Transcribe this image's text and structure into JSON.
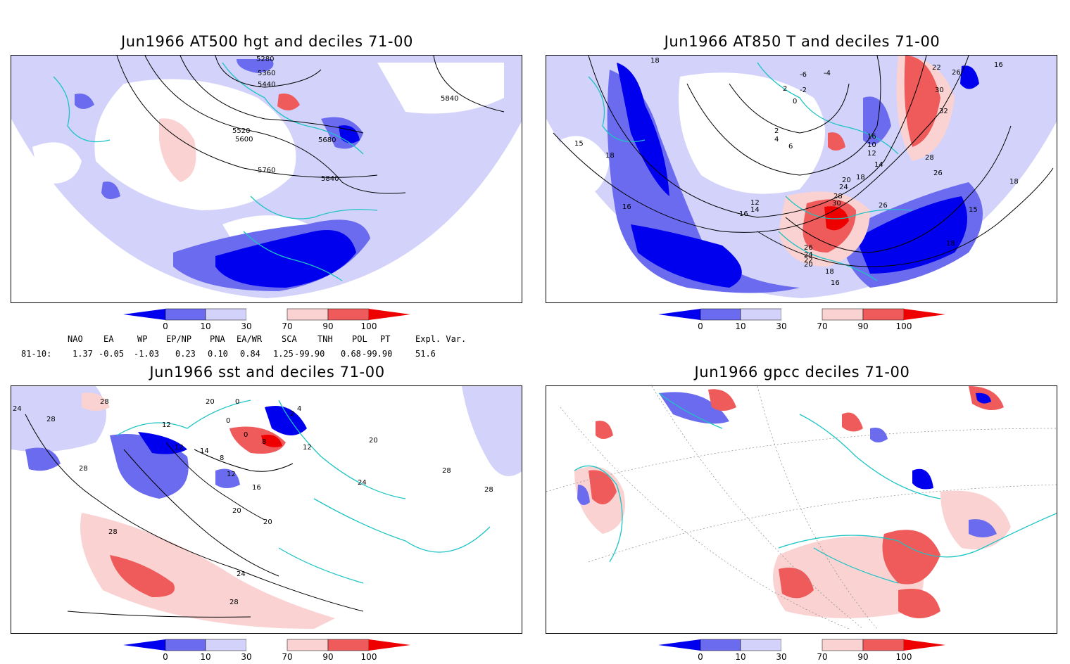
{
  "panels": [
    {
      "title": "Jun1966 AT500 hgt and deciles 71-00",
      "contour_labels": [
        "5280",
        "5360",
        "5440",
        "5520",
        "5600",
        "5680",
        "5760",
        "5840",
        "5840"
      ]
    },
    {
      "title": "Jun1966 AT850 T and deciles 71-00",
      "contour_labels": [
        "18",
        "-6",
        "-4",
        "2",
        "-2",
        "0",
        "22",
        "26",
        "30",
        "32",
        "2",
        "4",
        "6",
        "16",
        "10",
        "12",
        "14",
        "18",
        "20",
        "24",
        "28",
        "30",
        "28",
        "26",
        "15",
        "16",
        "18",
        "14",
        "12",
        "16",
        "26",
        "26",
        "24",
        "22",
        "20",
        "18",
        "16",
        "18",
        "15",
        "18",
        "16"
      ]
    },
    {
      "title": "Jun1966 sst and deciles 71-00",
      "contour_labels": [
        "24",
        "28",
        "28",
        "20",
        "0",
        "0",
        "12",
        "4",
        "2",
        "0",
        "12",
        "14",
        "8",
        "8",
        "12",
        "12",
        "16",
        "28",
        "20",
        "20",
        "24",
        "28",
        "24",
        "28",
        "28",
        "20",
        "28"
      ]
    },
    {
      "title": "Jun1966 gpcc deciles 71-00",
      "contour_labels": []
    }
  ],
  "colorbar": {
    "tick_labels": [
      "0",
      "10",
      "30",
      "70",
      "90",
      "100"
    ],
    "colors": [
      "#0000ee",
      "#6b6bf0",
      "#d2d2fa",
      "#ffffff",
      "#fad2d2",
      "#ef5a5a",
      "#ee0000"
    ]
  },
  "indices": {
    "headers": [
      "NAO",
      "EA",
      "WP",
      "EP/NP",
      "PNA",
      "EA/WR",
      "SCA",
      "TNH",
      "POL",
      "PT",
      "Expl. Var."
    ],
    "row_label": "81-10:",
    "values": [
      "1.37",
      "-0.05",
      "-1.03",
      "0.23",
      "0.10",
      "0.84",
      "1.25",
      "-99.90",
      "0.68",
      "-99.90",
      "51.6"
    ]
  },
  "map_colors": {
    "coast": "#1ec4c4",
    "contour": "#000000",
    "grid": "#888888"
  }
}
